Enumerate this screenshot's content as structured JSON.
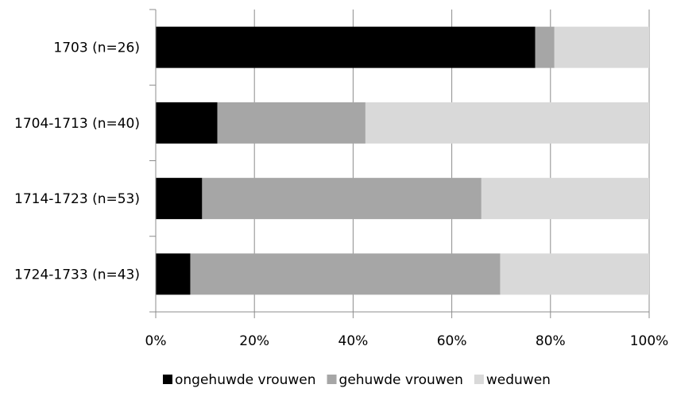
{
  "chart_data": {
    "type": "bar",
    "orientation": "horizontal",
    "stacked": "percent",
    "categories": [
      "1703 (n=26)",
      "1704-1713 (n=40)",
      "1714-1723 (n=53)",
      "1724-1733 (n=43)"
    ],
    "series": [
      {
        "name": "ongehuwde vrouwen",
        "color": "#000000",
        "values": [
          76.9,
          12.5,
          9.4,
          7.0
        ]
      },
      {
        "name": "gehuwde vrouwen",
        "color": "#a6a6a6",
        "values": [
          3.9,
          30.0,
          56.6,
          62.8
        ]
      },
      {
        "name": "weduwen",
        "color": "#d9d9d9",
        "values": [
          19.2,
          57.5,
          34.0,
          30.2
        ]
      }
    ],
    "x_ticks": [
      "0%",
      "20%",
      "40%",
      "60%",
      "80%",
      "100%"
    ],
    "xlim": [
      0,
      100
    ],
    "grid": true,
    "legend_position": "bottom",
    "title": "",
    "xlabel": "",
    "ylabel": ""
  }
}
